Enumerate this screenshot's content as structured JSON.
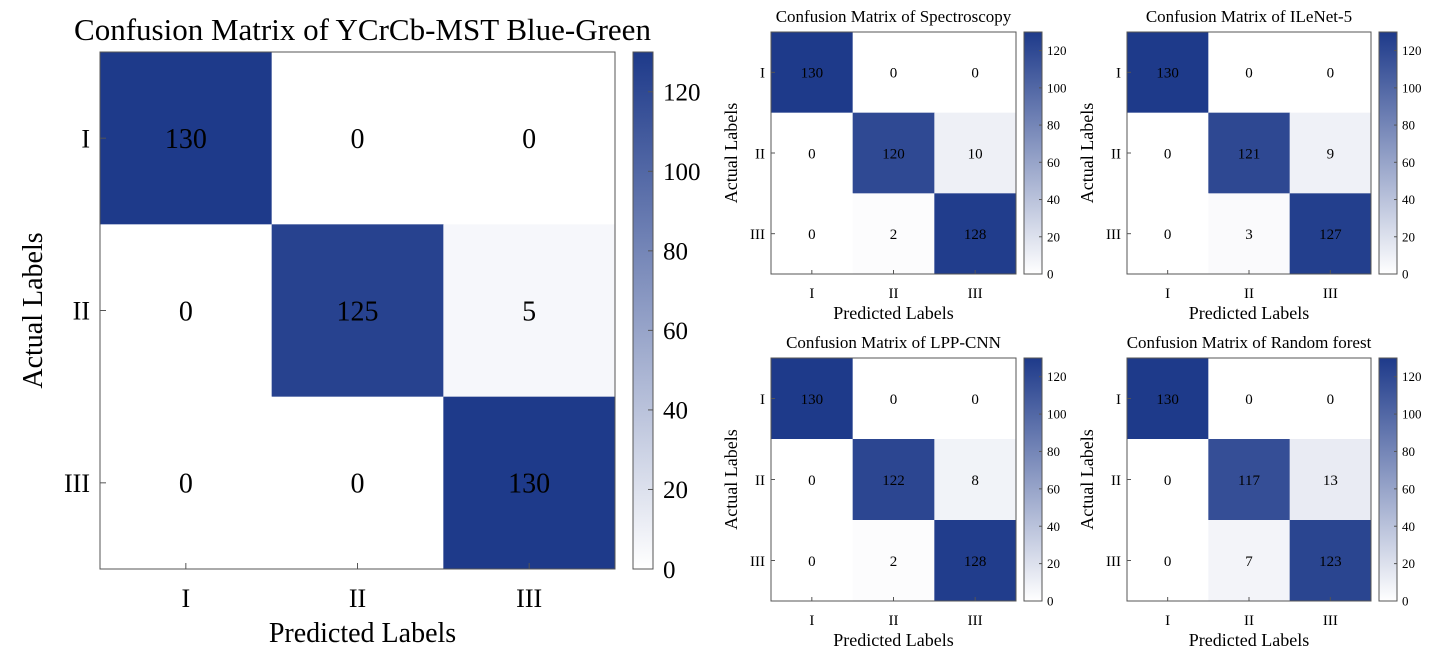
{
  "figure": {
    "colors": {
      "low": "#ffffff",
      "high": "#1e3a8a",
      "text_light": "#ffffff",
      "text_dark": "#000000",
      "axis": "#555555"
    }
  },
  "chart_data": [
    {
      "type": "heatmap",
      "title": "Confusion Matrix of YCrCb-MST Blue-Green",
      "xlabel": "Predicted Labels",
      "ylabel": "Actual Labels",
      "x_categories": [
        "I",
        "II",
        "III"
      ],
      "y_categories": [
        "I",
        "II",
        "III"
      ],
      "values": [
        [
          130,
          0,
          0
        ],
        [
          0,
          125,
          5
        ],
        [
          0,
          0,
          130
        ]
      ],
      "colorbar": {
        "min": 0,
        "max": 130,
        "ticks": [
          "0",
          "20",
          "40",
          "60",
          "80",
          "100",
          "120"
        ]
      }
    },
    {
      "type": "heatmap",
      "title": "Confusion Matrix of Spectroscopy",
      "xlabel": "Predicted Labels",
      "ylabel": "Actual Labels",
      "x_categories": [
        "I",
        "II",
        "III"
      ],
      "y_categories": [
        "I",
        "II",
        "III"
      ],
      "values": [
        [
          130,
          0,
          0
        ],
        [
          0,
          120,
          10
        ],
        [
          0,
          2,
          128
        ]
      ],
      "colorbar": {
        "min": 0,
        "max": 130,
        "ticks": [
          "0",
          "20",
          "40",
          "60",
          "80",
          "100",
          "120"
        ]
      }
    },
    {
      "type": "heatmap",
      "title": "Confusion Matrix of ILeNet-5",
      "xlabel": "Predicted Labels",
      "ylabel": "Actual Labels",
      "x_categories": [
        "I",
        "II",
        "III"
      ],
      "y_categories": [
        "I",
        "II",
        "III"
      ],
      "values": [
        [
          130,
          0,
          0
        ],
        [
          0,
          121,
          9
        ],
        [
          0,
          3,
          127
        ]
      ],
      "colorbar": {
        "min": 0,
        "max": 130,
        "ticks": [
          "0",
          "20",
          "40",
          "60",
          "80",
          "100",
          "120"
        ]
      }
    },
    {
      "type": "heatmap",
      "title": "Confusion Matrix of LPP-CNN",
      "xlabel": "Predicted Labels",
      "ylabel": "Actual Labels",
      "x_categories": [
        "I",
        "II",
        "III"
      ],
      "y_categories": [
        "I",
        "II",
        "III"
      ],
      "values": [
        [
          130,
          0,
          0
        ],
        [
          0,
          122,
          8
        ],
        [
          0,
          2,
          128
        ]
      ],
      "colorbar": {
        "min": 0,
        "max": 130,
        "ticks": [
          "0",
          "20",
          "40",
          "60",
          "80",
          "100",
          "120"
        ]
      }
    },
    {
      "type": "heatmap",
      "title": "Confusion Matrix of Random forest",
      "xlabel": "Predicted Labels",
      "ylabel": "Actual Labels",
      "x_categories": [
        "I",
        "II",
        "III"
      ],
      "y_categories": [
        "I",
        "II",
        "III"
      ],
      "values": [
        [
          130,
          0,
          0
        ],
        [
          0,
          117,
          13
        ],
        [
          0,
          7,
          123
        ]
      ],
      "colorbar": {
        "min": 0,
        "max": 130,
        "ticks": [
          "0",
          "20",
          "40",
          "60",
          "80",
          "100",
          "120"
        ]
      }
    }
  ]
}
